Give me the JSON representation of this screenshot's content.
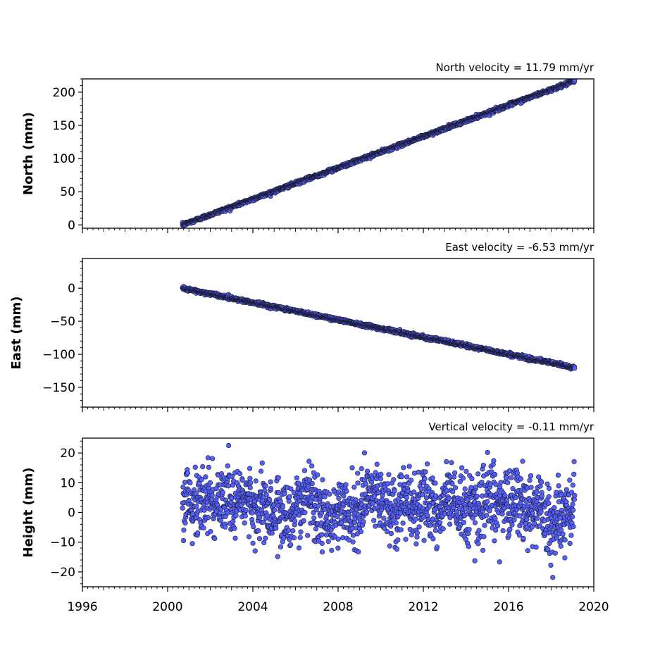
{
  "chart_data": [
    {
      "type": "scatter",
      "title": "North velocity = 11.79 mm/yr",
      "ylabel": "North (mm)",
      "xlim": [
        1996,
        2020
      ],
      "ylim": [
        -5,
        220
      ],
      "yticks": [
        0,
        50,
        100,
        150,
        200
      ],
      "series": [
        {
          "x_range": [
            2000.7,
            2019.1
          ],
          "trend": {
            "slope": 11.79,
            "start_value": 0,
            "noise_sd": 1.3
          }
        }
      ]
    },
    {
      "type": "scatter",
      "title": "East velocity = -6.53 mm/yr",
      "ylabel": "East (mm)",
      "xlim": [
        1996,
        2020
      ],
      "ylim": [
        -180,
        45
      ],
      "yticks": [
        0,
        -50,
        -100,
        -150
      ],
      "yticklabels": [
        "0",
        "−50",
        "−100",
        "−150"
      ],
      "series": [
        {
          "x_range": [
            2000.7,
            2019.1
          ],
          "trend": {
            "slope": -6.53,
            "start_value": 0,
            "noise_sd": 1.3
          }
        }
      ]
    },
    {
      "type": "scatter",
      "title": "Vertical velocity = -0.11 mm/yr",
      "ylabel": "Height (mm)",
      "xlim": [
        1996,
        2020
      ],
      "ylim": [
        -25,
        25
      ],
      "yticks": [
        20,
        10,
        0,
        -10,
        -20
      ],
      "yticklabels": [
        "20",
        "10",
        "0",
        "−10",
        "−20"
      ],
      "series": [
        {
          "x_range": [
            2000.7,
            2019.1
          ],
          "trend": {
            "slope": -0.11,
            "start_value": 3,
            "noise_sd": 5.5
          }
        }
      ]
    }
  ],
  "xaxis": {
    "ticks": [
      1996,
      2000,
      2004,
      2008,
      2012,
      2016,
      2020
    ],
    "labels": [
      "1996",
      "2000",
      "2004",
      "2008",
      "2012",
      "2016",
      "2020"
    ],
    "minor_step": 0.25,
    "medium_step": 1
  },
  "colors": {
    "marker_fill": "#5560f8",
    "marker_edge": "#1a1a33",
    "axis": "#000000"
  }
}
